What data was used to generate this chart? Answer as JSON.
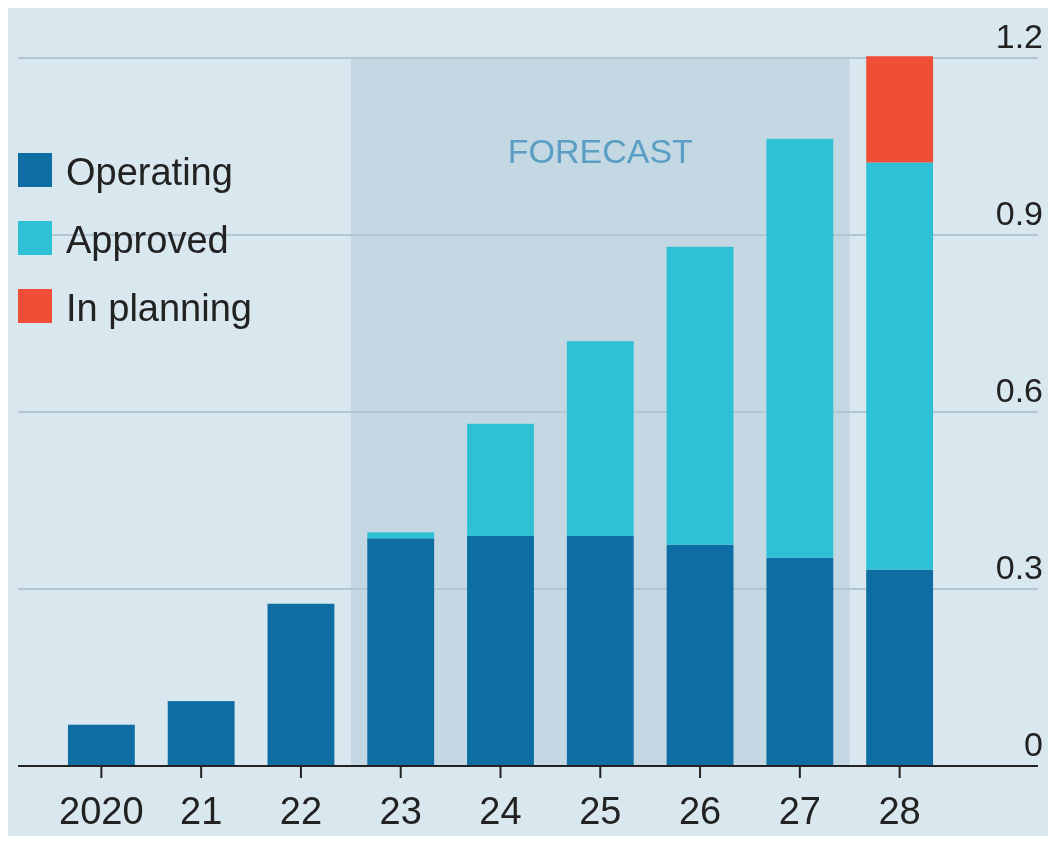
{
  "chart_data": {
    "type": "bar",
    "stacked": true,
    "categories": [
      "2020",
      "21",
      "22",
      "23",
      "24",
      "25",
      "26",
      "27",
      "28"
    ],
    "series": [
      {
        "name": "Operating",
        "color": "#0e6ea4",
        "values": [
          0.07,
          0.11,
          0.275,
          0.386,
          0.39,
          0.39,
          0.375,
          0.353,
          0.333
        ]
      },
      {
        "name": "Approved",
        "color": "#2ec1d6",
        "values": [
          null,
          null,
          null,
          0.01,
          0.19,
          0.33,
          0.505,
          0.71,
          0.69
        ]
      },
      {
        "name": "In planning",
        "color": "#f04e37",
        "values": [
          null,
          null,
          null,
          null,
          null,
          null,
          null,
          null,
          0.18
        ]
      }
    ],
    "ylim": [
      0,
      1.2
    ],
    "yticks": [
      0,
      0.3,
      0.6,
      0.9,
      1.2
    ],
    "grid": "y",
    "legend": "top left",
    "bands": [
      {
        "axis": "x",
        "from": "23",
        "to": "27",
        "label": "FORECAST",
        "color": "#c4d8e4"
      }
    ]
  }
}
